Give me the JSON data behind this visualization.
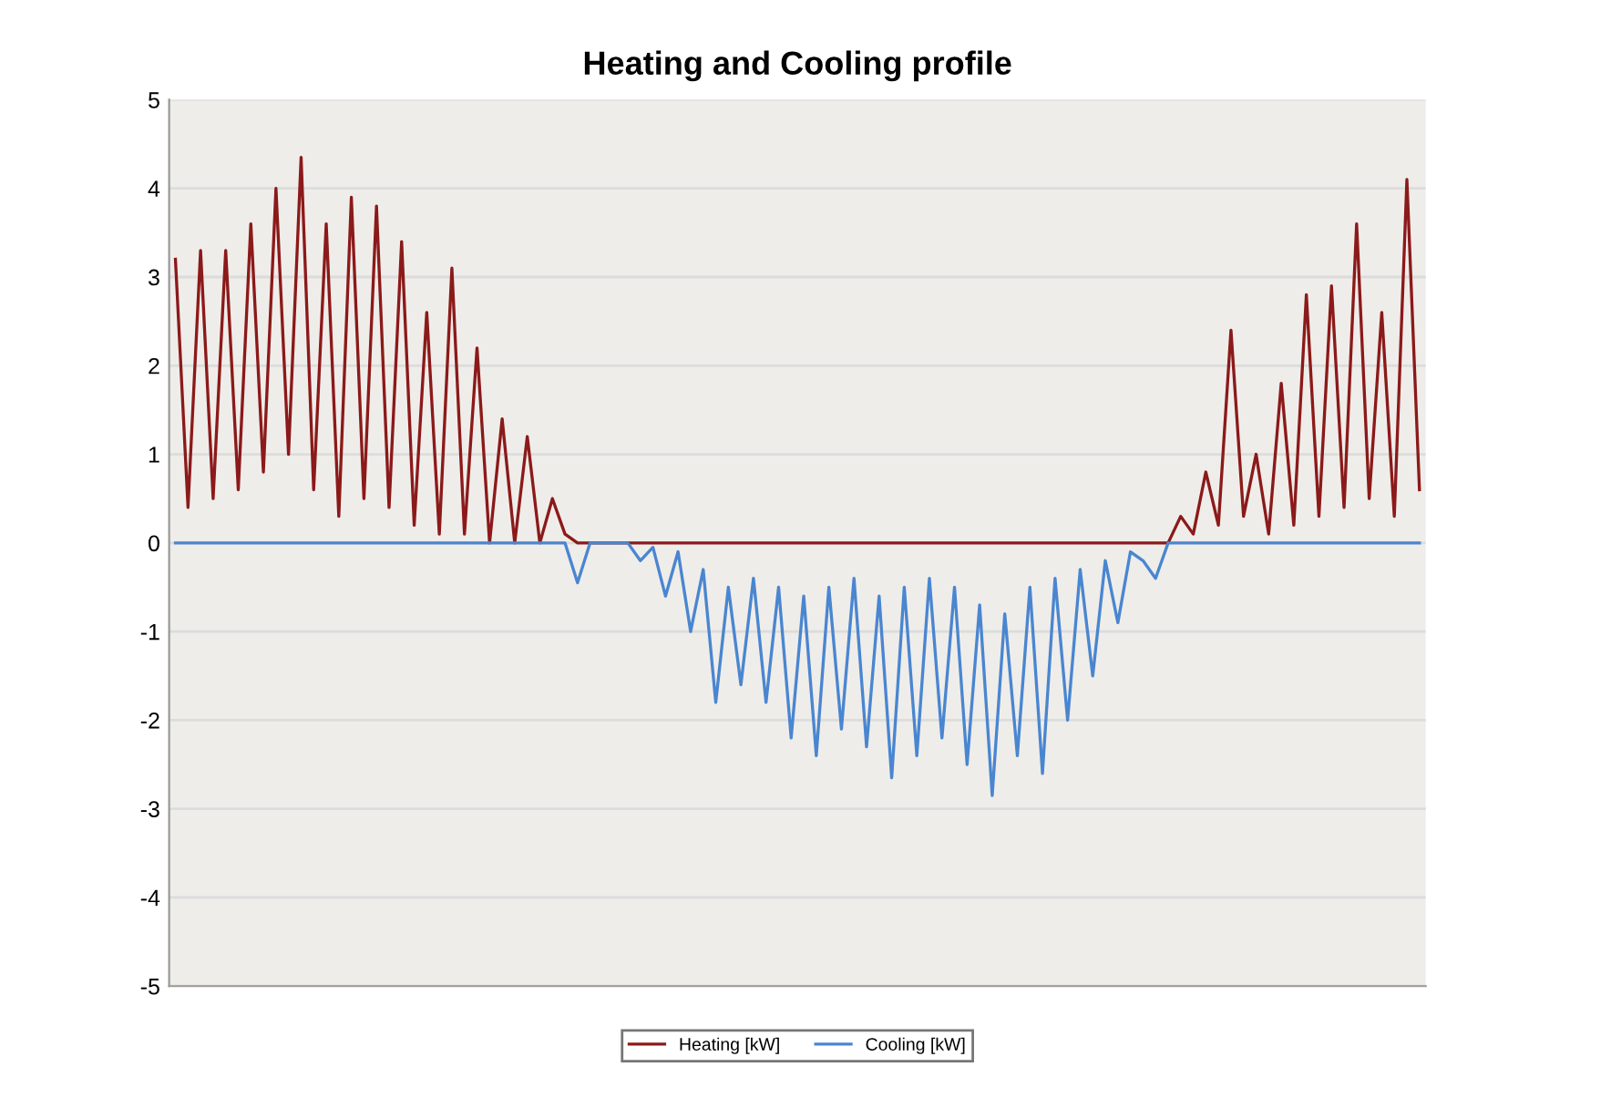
{
  "chart_data": {
    "type": "line",
    "title": "Heating and Cooling profile",
    "categories": [
      null,
      null,
      null,
      null,
      null,
      null,
      null,
      null,
      null,
      null,
      null,
      null,
      null,
      null,
      null,
      null,
      null,
      null,
      null,
      null,
      null,
      null,
      null,
      null,
      null,
      null,
      null,
      null,
      null,
      null,
      null,
      null,
      null,
      null,
      null,
      null,
      null,
      null,
      null,
      null,
      null,
      null,
      null,
      null,
      null,
      null,
      null,
      null,
      null,
      null,
      null,
      null,
      null,
      null,
      null,
      null,
      null,
      null,
      null,
      null,
      null,
      null,
      null,
      null,
      null,
      null,
      null,
      null,
      null,
      null,
      null,
      null,
      null,
      null,
      null,
      null,
      null,
      null,
      null,
      null,
      null,
      null,
      null,
      null,
      null,
      null,
      null,
      null,
      null,
      null,
      null,
      null,
      null,
      null,
      null,
      null,
      null,
      null,
      null,
      null
    ],
    "series": [
      {
        "name": "Heating [kW]",
        "color": "#8b1a1a",
        "values": [
          3.2,
          0.4,
          3.3,
          0.5,
          3.3,
          0.6,
          3.6,
          0.8,
          4.0,
          1.0,
          4.35,
          0.6,
          3.6,
          0.3,
          3.9,
          0.5,
          3.8,
          0.4,
          3.4,
          0.2,
          2.6,
          0.1,
          3.1,
          0.1,
          2.2,
          0,
          1.4,
          0,
          1.2,
          0,
          0.5,
          0.1,
          0,
          0,
          0,
          0,
          0,
          0,
          0,
          0,
          0,
          0,
          0,
          0,
          0,
          0,
          0,
          0,
          0,
          0,
          0,
          0,
          0,
          0,
          0,
          0,
          0,
          0,
          0,
          0,
          0,
          0,
          0,
          0,
          0,
          0,
          0,
          0,
          0,
          0,
          0,
          0,
          0,
          0,
          0,
          0,
          0,
          0,
          0,
          0,
          0.3,
          0.1,
          0.8,
          0.2,
          2.4,
          0.3,
          1.0,
          0.1,
          1.8,
          0.2,
          2.8,
          0.3,
          2.9,
          0.4,
          3.6,
          0.5,
          2.6,
          0.3,
          4.1,
          0.6
        ]
      },
      {
        "name": "Cooling [kW]",
        "color": "#4a86d0",
        "values": [
          0,
          0,
          0,
          0,
          0,
          0,
          0,
          0,
          0,
          0,
          0,
          0,
          0,
          0,
          0,
          0,
          0,
          0,
          0,
          0,
          0,
          0,
          0,
          0,
          0,
          0,
          0,
          0,
          0,
          0,
          0,
          0,
          -0.45,
          0,
          0,
          0,
          0,
          -0.2,
          -0.05,
          -0.6,
          -0.1,
          -1.0,
          -0.3,
          -1.8,
          -0.5,
          -1.6,
          -0.4,
          -1.8,
          -0.5,
          -2.2,
          -0.6,
          -2.4,
          -0.5,
          -2.1,
          -0.4,
          -2.3,
          -0.6,
          -2.65,
          -0.5,
          -2.4,
          -0.4,
          -2.2,
          -0.5,
          -2.5,
          -0.7,
          -2.85,
          -0.8,
          -2.4,
          -0.5,
          -2.6,
          -0.4,
          -2.0,
          -0.3,
          -1.5,
          -0.2,
          -0.9,
          -0.1,
          -0.2,
          -0.4,
          0,
          0,
          0,
          0,
          0,
          0,
          0,
          0,
          0,
          0,
          0,
          0,
          0,
          0,
          0,
          0,
          0,
          0,
          0,
          0,
          0
        ]
      }
    ],
    "ylim": [
      -5,
      5
    ],
    "yticks": [
      -5,
      -4,
      -3,
      -2,
      -1,
      0,
      1,
      2,
      3,
      4,
      5
    ],
    "grid": "y",
    "legend": "bottom",
    "marker": "none",
    "line_style": "solid"
  }
}
